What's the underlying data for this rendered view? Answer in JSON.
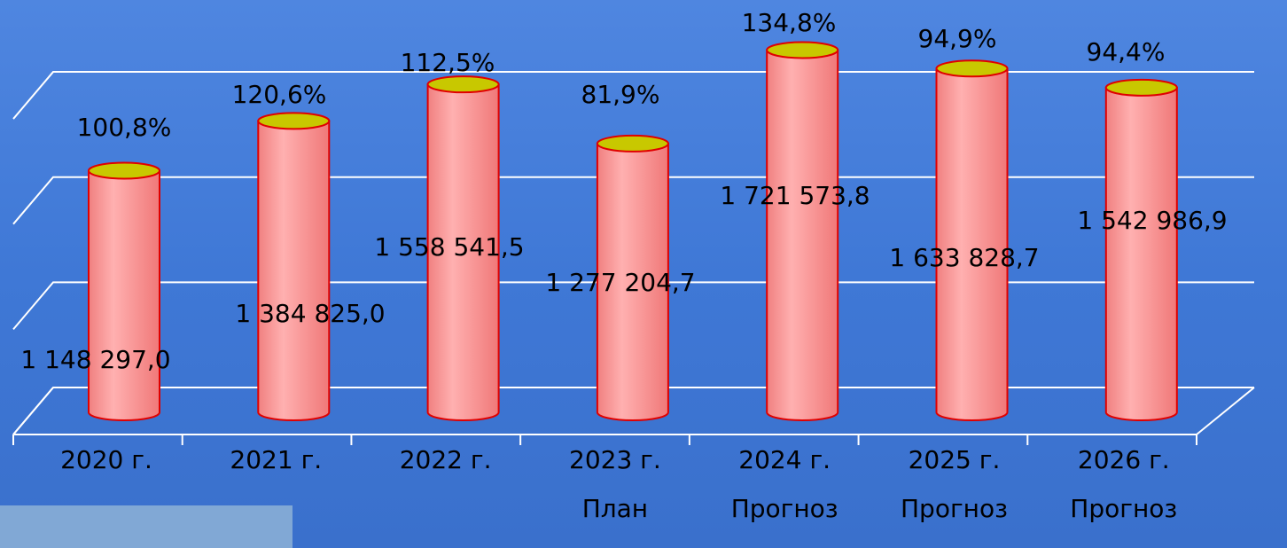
{
  "chart_data": {
    "type": "bar",
    "categories": [
      [
        "2020 г."
      ],
      [
        "2021 г."
      ],
      [
        "2022 г."
      ],
      [
        "2023 г.",
        "План"
      ],
      [
        "2024 г.",
        "Прогноз"
      ],
      [
        "2025 г.",
        "Прогноз"
      ],
      [
        "2026 г.",
        "Прогноз"
      ]
    ],
    "values": [
      1148297.0,
      1384825.0,
      1558541.5,
      1277204.7,
      1721573.8,
      1633828.7,
      1542986.9
    ],
    "value_labels": [
      "1 148 297,0",
      "1 384 825,0",
      "1 558 541,5",
      "1 277 204,7",
      "1 721 573,8",
      "1 633 828,7",
      "1 542 986,9"
    ],
    "annotations": [
      "100,8%",
      "120,6%",
      "112,5%",
      "81,9%",
      "134,8%",
      "94,9%",
      "94,4%"
    ],
    "color": "#ff9f9f",
    "top_color": "#c8c800",
    "edge_color": "#e00000",
    "ylim": [
      0,
      1850000
    ],
    "yticks": [
      0,
      500000,
      1000000,
      1500000
    ],
    "grid": true
  }
}
